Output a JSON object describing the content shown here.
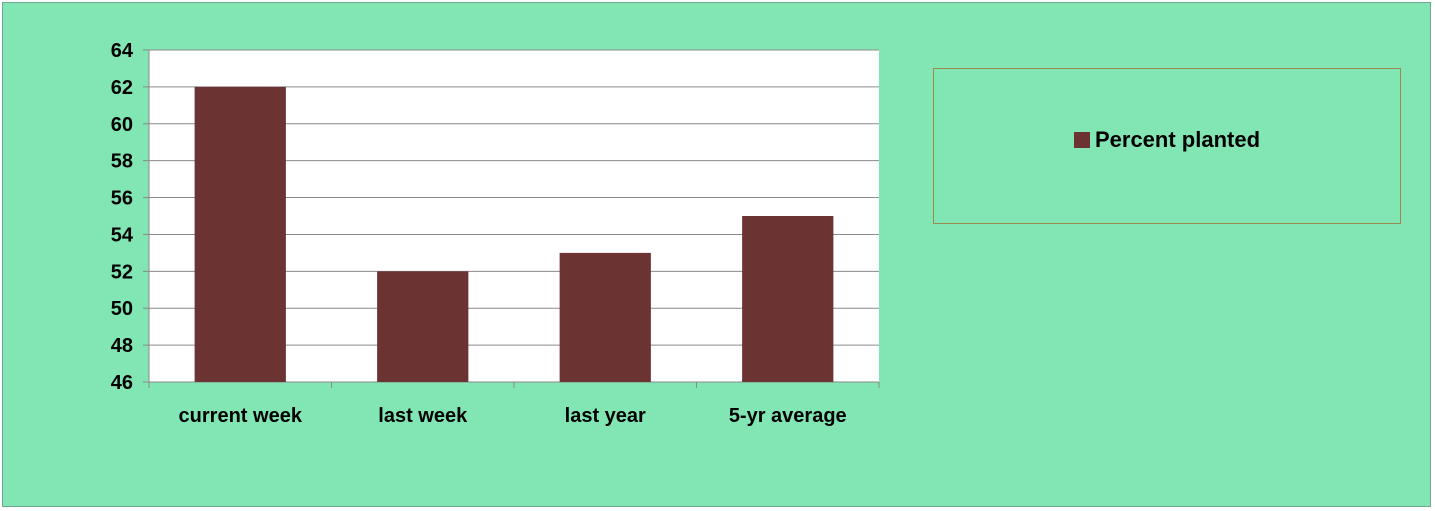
{
  "colors": {
    "background": "#82e5b4",
    "plot_area": "#ffffff",
    "bar": "#6b3432",
    "gridline": "#8a8a8a"
  },
  "chart_data": {
    "type": "bar",
    "categories": [
      "current week",
      "last week",
      "last year",
      "5-yr average"
    ],
    "series": [
      {
        "name": "Percent planted",
        "values": [
          62,
          52,
          53,
          55
        ]
      }
    ],
    "ylim": [
      46,
      64
    ],
    "yticks": [
      46,
      48,
      50,
      52,
      54,
      56,
      58,
      60,
      62,
      64
    ],
    "grid": true,
    "legend_position": "right"
  }
}
